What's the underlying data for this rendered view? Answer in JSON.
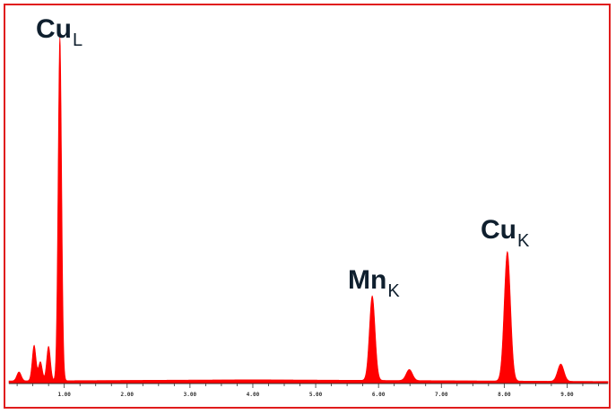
{
  "chart_data": {
    "type": "area",
    "title": "",
    "xlabel": "",
    "ylabel": "",
    "xlim": [
      0.12,
      9.65
    ],
    "ylim": [
      0,
      100
    ],
    "x_ticks": [
      {
        "value": 1,
        "label": "1.00"
      },
      {
        "value": 2,
        "label": "2.00"
      },
      {
        "value": 3,
        "label": "3.00"
      },
      {
        "value": 4,
        "label": "4.00"
      },
      {
        "value": 5,
        "label": "5.00"
      },
      {
        "value": 6,
        "label": "6.00"
      },
      {
        "value": 7,
        "label": "7.00"
      },
      {
        "value": 8,
        "label": "8.00"
      },
      {
        "value": 9,
        "label": "9.00"
      }
    ],
    "color": "#ff0000",
    "background_level": 0.8,
    "series": [
      {
        "peaks": [
          {
            "x": 0.28,
            "height": 2.6,
            "width": 0.035
          },
          {
            "x": 0.52,
            "height": 10.3,
            "width": 0.03
          },
          {
            "x": 0.62,
            "height": 5.5,
            "width": 0.03
          },
          {
            "x": 0.75,
            "height": 10,
            "width": 0.03
          },
          {
            "x": 0.93,
            "height": 100,
            "width": 0.028
          },
          {
            "x": 5.9,
            "height": 24.5,
            "width": 0.045
          },
          {
            "x": 6.49,
            "height": 3.2,
            "width": 0.05
          },
          {
            "x": 8.05,
            "height": 37.5,
            "width": 0.05
          },
          {
            "x": 8.9,
            "height": 5,
            "width": 0.05
          }
        ]
      }
    ],
    "annotations": [
      {
        "main": "Cu",
        "sub": "L",
        "x": 0.93
      },
      {
        "main": "Mn",
        "sub": "K",
        "x": 5.9
      },
      {
        "main": "Cu",
        "sub": "K",
        "x": 8.05
      }
    ],
    "grid": false,
    "legend": "none"
  }
}
